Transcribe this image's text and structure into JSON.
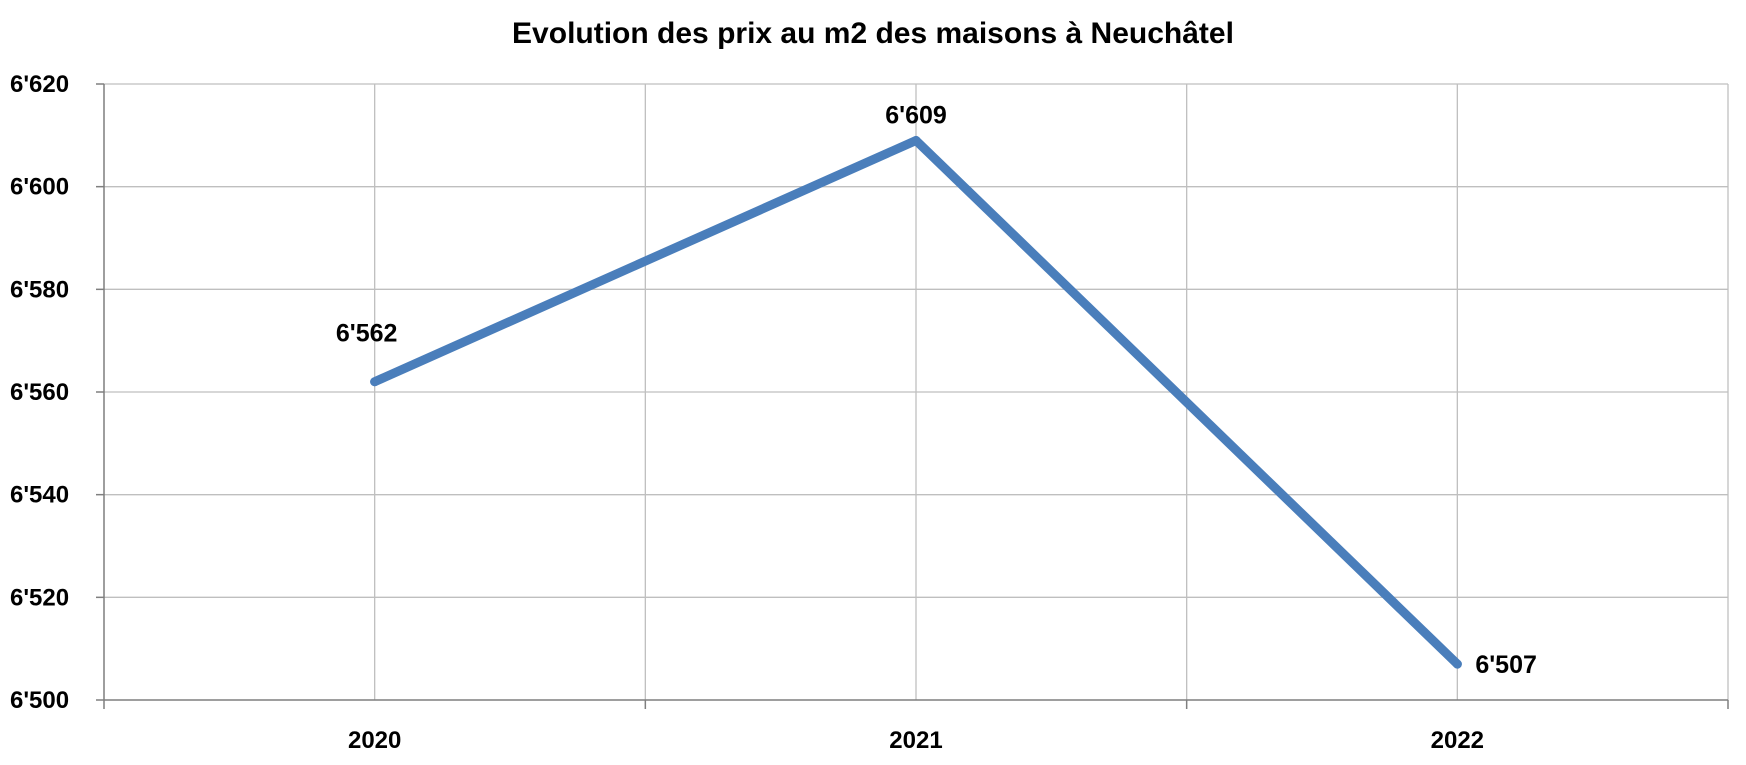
{
  "chart_data": {
    "type": "line",
    "title": "Evolution des prix au m2 des maisons à Neuchâtel",
    "xlabel": "",
    "ylabel": "",
    "categories": [
      "2020",
      "2021",
      "2022"
    ],
    "series": [
      {
        "values": [
          6562,
          6609,
          6507
        ],
        "labels": [
          "6'562",
          "6'609",
          "6'507"
        ],
        "color": "#4A7EBB"
      }
    ],
    "ylim": [
      6500,
      6620
    ],
    "yticks": [
      6500,
      6520,
      6540,
      6560,
      6580,
      6600,
      6620
    ],
    "ytick_labels": [
      "6'500",
      "6'520",
      "6'540",
      "6'560",
      "6'580",
      "6'600",
      "6'620"
    ],
    "grid": true,
    "legend": "none",
    "colors": {
      "line": "#4A7EBB",
      "grid": "#BFBFBF",
      "axis": "#7F7F7F",
      "text": "#000000"
    }
  }
}
